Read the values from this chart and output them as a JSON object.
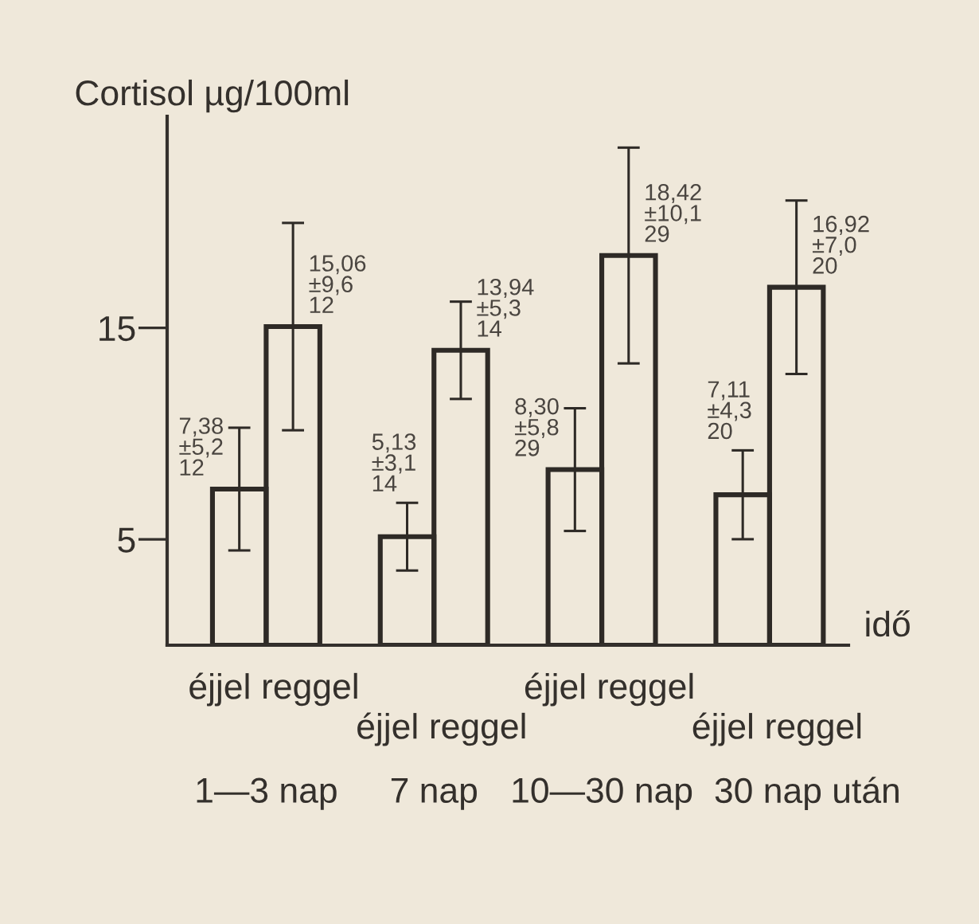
{
  "chart_data": {
    "type": "bar",
    "ylabel": "Cortisol µg/100ml",
    "xlabel": "idő",
    "categories": [
      "1—3 nap",
      "7 nap",
      "10—30 nap",
      "30 nap után"
    ],
    "series": [
      {
        "name": "éjjel",
        "color": "#2e2a26",
        "values": [
          7.38,
          5.13,
          8.3,
          7.11
        ],
        "errors": [
          2.9,
          1.6,
          2.9,
          2.1
        ],
        "value_labels": [
          "7,38\n±5,2\n12",
          "5,13\n±3,1\n14",
          "8,30\n±5,8\n29",
          "7,11\n±4,3\n20"
        ]
      },
      {
        "name": "reggel",
        "color": "#2e2a26",
        "values": [
          15.06,
          13.94,
          18.42,
          16.92
        ],
        "errors": [
          4.9,
          2.3,
          5.1,
          4.1
        ],
        "value_labels": [
          "15,06\n±9,6\n12",
          "13,94\n±5,3\n14",
          "18,42\n±10,1\n29",
          "16,92\n±7,0\n20"
        ]
      }
    ],
    "ylim": [
      0,
      25
    ],
    "yticks": [
      5,
      15
    ],
    "grid": false,
    "legend": false
  }
}
